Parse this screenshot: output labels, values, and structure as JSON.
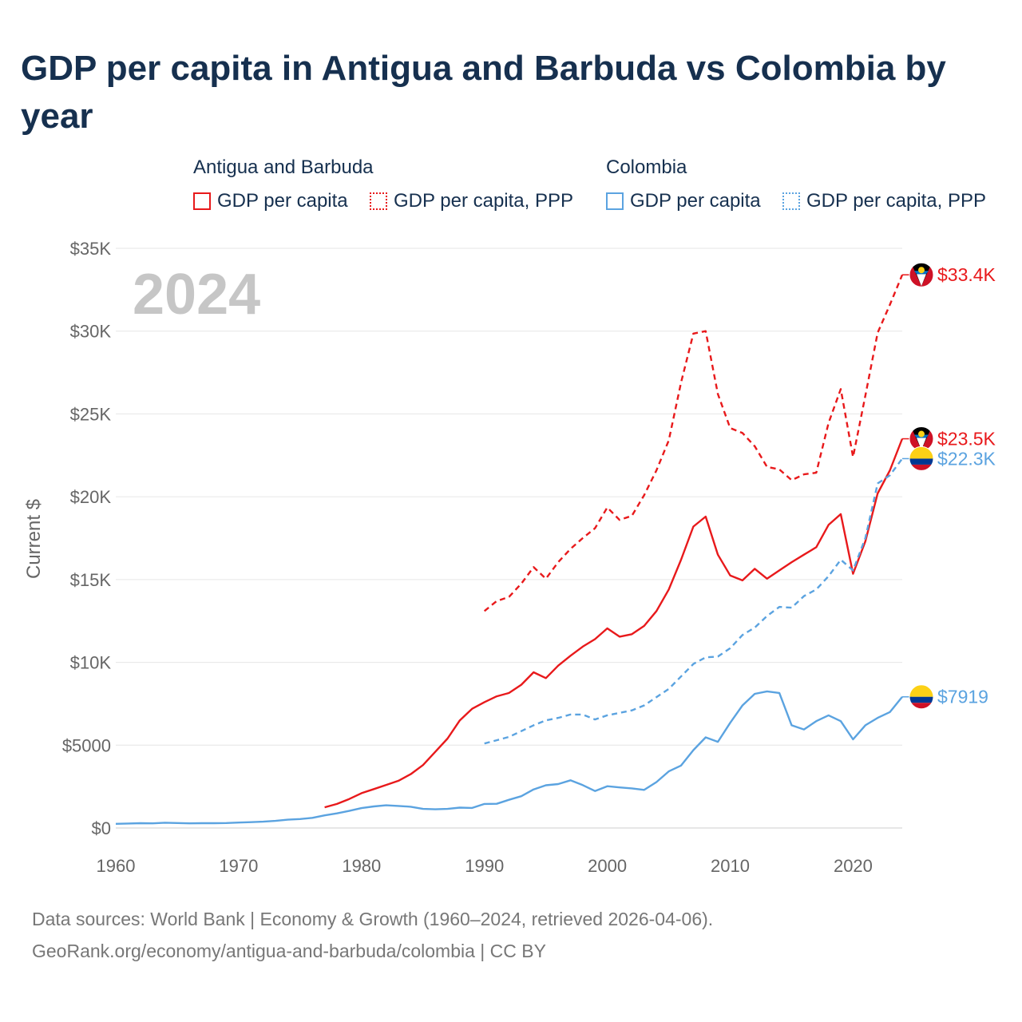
{
  "title": "GDP per capita in Antigua and Barbuda vs Colombia by year",
  "legend": {
    "groups": [
      {
        "name": "Antigua and Barbuda",
        "items": [
          {
            "label": "GDP per capita",
            "color": "#e8191b",
            "dash": false
          },
          {
            "label": "GDP per capita, PPP",
            "color": "#e8191b",
            "dash": true
          }
        ]
      },
      {
        "name": "Colombia",
        "items": [
          {
            "label": "GDP per capita",
            "color": "#5ba3e0",
            "dash": false
          },
          {
            "label": "GDP per capita, PPP",
            "color": "#5ba3e0",
            "dash": true
          }
        ]
      }
    ]
  },
  "footer": {
    "line1": "Data sources: World Bank | Economy & Growth (1960–2024, retrieved 2026-04-06).",
    "line2": "GeoRank.org/economy/antigua-and-barbuda/colombia | CC BY"
  },
  "chart_data": {
    "type": "line",
    "year_label": "2024",
    "ylabel": "Current $",
    "xlim": [
      1960,
      2024
    ],
    "ylim": [
      0,
      35000
    ],
    "x_ticks": [
      1960,
      1970,
      1980,
      1990,
      2000,
      2010,
      2020
    ],
    "y_ticks": [
      0,
      5000,
      10000,
      15000,
      20000,
      25000,
      30000,
      35000
    ],
    "y_tick_labels": [
      "$0",
      "$5000",
      "$10K",
      "$15K",
      "$20K",
      "$25K",
      "$30K",
      "$35K"
    ],
    "series": [
      {
        "name": "Antigua and Barbuda GDP per capita",
        "color": "#e8191b",
        "dash": false,
        "flag": "antigua",
        "end_label": "$23.5K",
        "x": [
          1977,
          1978,
          1979,
          1980,
          1981,
          1982,
          1983,
          1984,
          1985,
          1986,
          1987,
          1988,
          1989,
          1990,
          1991,
          1992,
          1993,
          1994,
          1995,
          1996,
          1997,
          1998,
          1999,
          2000,
          2001,
          2002,
          2003,
          2004,
          2005,
          2006,
          2007,
          2008,
          2009,
          2010,
          2011,
          2012,
          2013,
          2014,
          2015,
          2016,
          2017,
          2018,
          2019,
          2020,
          2021,
          2022,
          2023,
          2024
        ],
        "y": [
          1250,
          1450,
          1750,
          2100,
          2350,
          2600,
          2850,
          3250,
          3800,
          4600,
          5400,
          6500,
          7200,
          7600,
          7950,
          8150,
          8650,
          9400,
          9050,
          9800,
          10400,
          10950,
          11400,
          12050,
          11550,
          11700,
          12200,
          13100,
          14400,
          16200,
          18200,
          18800,
          16500,
          15250,
          14950,
          15650,
          15050,
          15550,
          16050,
          16500,
          16950,
          18300,
          18950,
          15350,
          17300,
          20200,
          21600,
          23500
        ]
      },
      {
        "name": "Antigua and Barbuda GDP per capita, PPP",
        "color": "#e8191b",
        "dash": true,
        "flag": "antigua",
        "end_label": "$33.4K",
        "x": [
          1990,
          1991,
          1992,
          1993,
          1994,
          1995,
          1996,
          1997,
          1998,
          1999,
          2000,
          2001,
          2002,
          2003,
          2004,
          2005,
          2006,
          2007,
          2008,
          2009,
          2010,
          2011,
          2012,
          2013,
          2014,
          2015,
          2016,
          2017,
          2018,
          2019,
          2020,
          2021,
          2022,
          2023,
          2024
        ],
        "y": [
          13100,
          13700,
          13950,
          14750,
          15750,
          15050,
          16050,
          16850,
          17500,
          18100,
          19350,
          18600,
          18850,
          20100,
          21600,
          23400,
          26900,
          29850,
          30000,
          26200,
          24150,
          23850,
          23050,
          21800,
          21650,
          21000,
          21350,
          21450,
          24450,
          26500,
          22400,
          26100,
          29900,
          31600,
          33400
        ]
      },
      {
        "name": "Colombia GDP per capita",
        "color": "#5ba3e0",
        "dash": false,
        "flag": "colombia",
        "end_label": "$7919",
        "x": [
          1960,
          1961,
          1962,
          1963,
          1964,
          1965,
          1966,
          1967,
          1968,
          1969,
          1970,
          1971,
          1972,
          1973,
          1974,
          1975,
          1976,
          1977,
          1978,
          1979,
          1980,
          1981,
          1982,
          1983,
          1984,
          1985,
          1986,
          1987,
          1988,
          1989,
          1990,
          1991,
          1992,
          1993,
          1994,
          1995,
          1996,
          1997,
          1998,
          1999,
          2000,
          2001,
          2002,
          2003,
          2004,
          2005,
          2006,
          2007,
          2008,
          2009,
          2010,
          2011,
          2012,
          2013,
          2014,
          2015,
          2016,
          2017,
          2018,
          2019,
          2020,
          2021,
          2022,
          2023,
          2024
        ],
        "y": [
          250,
          270,
          290,
          280,
          320,
          300,
          280,
          290,
          290,
          300,
          330,
          350,
          380,
          430,
          500,
          540,
          610,
          760,
          880,
          1030,
          1200,
          1300,
          1370,
          1330,
          1280,
          1150,
          1130,
          1150,
          1230,
          1210,
          1450,
          1460,
          1700,
          1920,
          2330,
          2580,
          2650,
          2880,
          2590,
          2230,
          2520,
          2450,
          2390,
          2300,
          2770,
          3420,
          3770,
          4700,
          5470,
          5200,
          6350,
          7400,
          8100,
          8250,
          8150,
          6200,
          5950,
          6450,
          6800,
          6450,
          5350,
          6200,
          6650,
          7000,
          7919
        ]
      },
      {
        "name": "Colombia GDP per capita, PPP",
        "color": "#5ba3e0",
        "dash": true,
        "flag": "colombia",
        "end_label": "$22.3K",
        "x": [
          1990,
          1991,
          1992,
          1993,
          1994,
          1995,
          1996,
          1997,
          1998,
          1999,
          2000,
          2001,
          2002,
          2003,
          2004,
          2005,
          2006,
          2007,
          2008,
          2009,
          2010,
          2011,
          2012,
          2013,
          2014,
          2015,
          2016,
          2017,
          2018,
          2019,
          2020,
          2021,
          2022,
          2023,
          2024
        ],
        "y": [
          5100,
          5300,
          5500,
          5850,
          6200,
          6500,
          6650,
          6850,
          6850,
          6550,
          6800,
          6950,
          7100,
          7400,
          7900,
          8400,
          9150,
          9900,
          10300,
          10350,
          10850,
          11650,
          12100,
          12800,
          13350,
          13300,
          14000,
          14400,
          15200,
          16200,
          15550,
          17500,
          20800,
          21300,
          22300
        ]
      }
    ]
  }
}
